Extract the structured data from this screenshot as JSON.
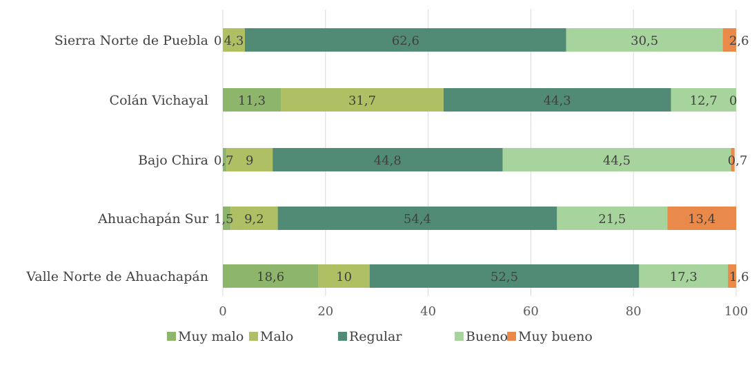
{
  "colors": {
    "Muy malo": "#8db56b",
    "Malo": "#aebf64",
    "Regular": "#528b75",
    "Bueno": "#a7d49c",
    "Muy bueno": "#e98a4b"
  },
  "chart_data": {
    "type": "bar",
    "orientation": "horizontal",
    "stacked": true,
    "categories": [
      "Sierra Norte de Puebla",
      "Colán Vichayal",
      "Bajo Chira",
      "Ahuachapán Sur",
      "Valle Norte de Ahuachapán"
    ],
    "series": [
      {
        "name": "Muy malo",
        "values": [
          0,
          11.3,
          0.7,
          1.5,
          18.6
        ],
        "labels": [
          "0",
          "11,3",
          "0,7",
          "1,5",
          "18,6"
        ]
      },
      {
        "name": "Malo",
        "values": [
          4.3,
          31.7,
          9,
          9.2,
          10
        ],
        "labels": [
          "4,3",
          "31,7",
          "9",
          "9,2",
          "10"
        ]
      },
      {
        "name": "Regular",
        "values": [
          62.6,
          44.3,
          44.8,
          54.4,
          52.5
        ],
        "labels": [
          "62,6",
          "44,3",
          "44,8",
          "54,4",
          "52,5"
        ]
      },
      {
        "name": "Bueno",
        "values": [
          30.5,
          12.7,
          44.5,
          21.5,
          17.3
        ],
        "labels": [
          "30,5",
          "12,7",
          "44,5",
          "21,5",
          "17,3"
        ]
      },
      {
        "name": "Muy bueno",
        "values": [
          2.6,
          0,
          0.7,
          13.4,
          1.6
        ],
        "labels": [
          "2,6",
          "0",
          "0,7",
          "13,4",
          "1,6"
        ]
      }
    ],
    "xlim": [
      0,
      100
    ],
    "xticks": [
      "0",
      "20",
      "40",
      "60",
      "80",
      "100"
    ],
    "grid": true,
    "legend": "bottom"
  }
}
